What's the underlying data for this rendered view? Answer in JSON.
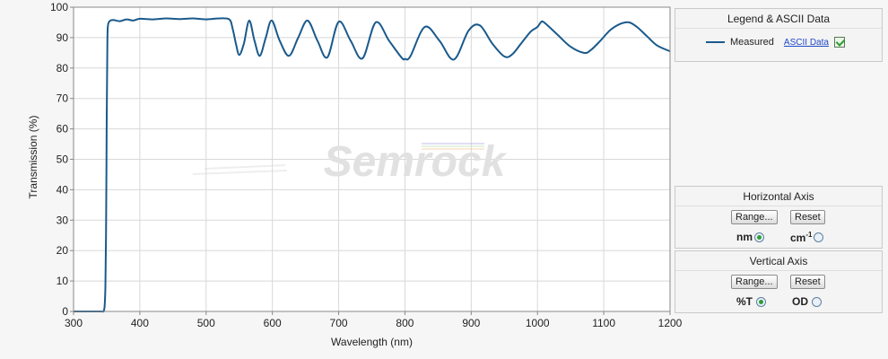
{
  "chart_data": {
    "type": "line",
    "xlabel": "Wavelength (nm)",
    "ylabel": "Transmission (%)",
    "xlim": [
      300,
      1200
    ],
    "ylim": [
      0,
      100
    ],
    "xticks": [
      300,
      400,
      500,
      600,
      700,
      800,
      900,
      1000,
      1100,
      1200
    ],
    "yticks": [
      0,
      10,
      20,
      30,
      40,
      50,
      60,
      70,
      80,
      90,
      100
    ],
    "grid": true,
    "legend_position": "right",
    "series": [
      {
        "name": "Measured",
        "color": "#1a5a8c",
        "x": [
          300,
          340,
          345,
          346,
          347,
          348,
          349,
          350,
          351,
          352,
          355,
          360,
          370,
          380,
          390,
          400,
          420,
          440,
          460,
          480,
          500,
          520,
          535,
          540,
          545,
          550,
          557,
          565,
          573,
          581,
          590,
          599,
          611,
          625,
          639,
          653,
          668,
          683,
          700,
          718,
          736,
          756,
          776,
          795,
          800,
          808,
          830,
          852,
          874,
          896,
          913,
          932,
          950,
          962,
          975,
          990,
          1000,
          1005,
          1010,
          1030,
          1050,
          1070,
          1080,
          1095,
          1110,
          1125,
          1138,
          1150,
          1165,
          1180,
          1200
        ],
        "y": [
          0,
          0,
          0,
          0.5,
          2,
          8,
          25,
          60,
          88,
          94,
          95.5,
          95.8,
          95.4,
          96,
          95.6,
          96.2,
          96,
          96.3,
          96.1,
          96.3,
          96,
          96.3,
          96,
          93,
          88,
          84.3,
          88,
          95.6,
          89,
          84,
          90,
          95.6,
          89,
          84,
          90,
          95.6,
          89,
          83.5,
          95.2,
          89,
          83.2,
          95,
          89,
          83.4,
          83,
          83.8,
          93.5,
          89,
          82.8,
          92.3,
          94,
          88,
          83.8,
          84.5,
          88,
          92,
          93.5,
          95,
          95,
          91,
          87,
          85,
          85.8,
          89,
          92.5,
          94.5,
          95,
          93.5,
          90.5,
          87.5,
          85.5
        ]
      }
    ]
  },
  "legend_panel": {
    "title": "Legend & ASCII Data",
    "series_label": "Measured",
    "ascii_link": "ASCII Data"
  },
  "horizontal_axis_panel": {
    "title": "Horizontal Axis",
    "range_label": "Range...",
    "reset_label": "Reset",
    "option_nm": "nm",
    "option_cm_base": "cm",
    "option_cm_exp": "-1"
  },
  "vertical_axis_panel": {
    "title": "Vertical  Axis",
    "range_label": "Range...",
    "reset_label": "Reset",
    "option_t": "%T",
    "option_od": "OD"
  },
  "watermark": "Semrock"
}
